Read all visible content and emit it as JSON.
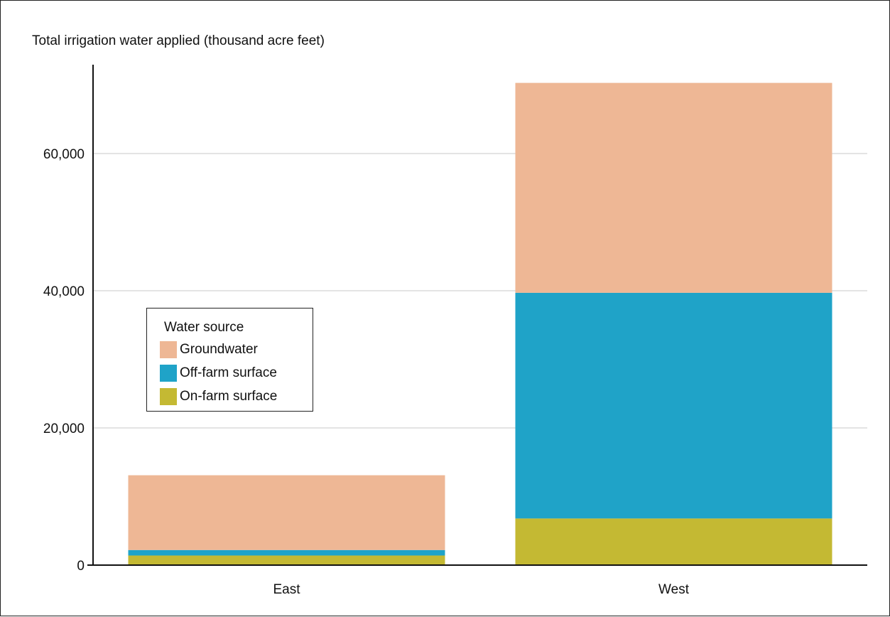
{
  "chart_data": {
    "type": "bar",
    "stacked": true,
    "ylabel": "Total irrigation water applied (thousand acre feet)",
    "xlabel": "",
    "categories": [
      "East",
      "West"
    ],
    "series": [
      {
        "name": "On-farm surface",
        "color": "#c4b933",
        "values": [
          1400,
          6800
        ]
      },
      {
        "name": "Off-farm surface",
        "color": "#1fa3c8",
        "values": [
          800,
          32900
        ]
      },
      {
        "name": "Groundwater",
        "color": "#eeb795",
        "values": [
          10900,
          30600
        ]
      }
    ],
    "ylim": [
      0,
      70000
    ],
    "yticks": [
      0,
      20000,
      40000,
      60000
    ],
    "ytick_labels": [
      "0",
      "20,000",
      "40,000",
      "60,000"
    ],
    "grid": true,
    "legend": {
      "title": "Water source",
      "placement": "left-middle",
      "entries": [
        {
          "label": "Groundwater",
          "color": "#eeb795"
        },
        {
          "label": "Off-farm surface",
          "color": "#1fa3c8"
        },
        {
          "label": "On-farm surface",
          "color": "#c4b933"
        }
      ]
    }
  }
}
